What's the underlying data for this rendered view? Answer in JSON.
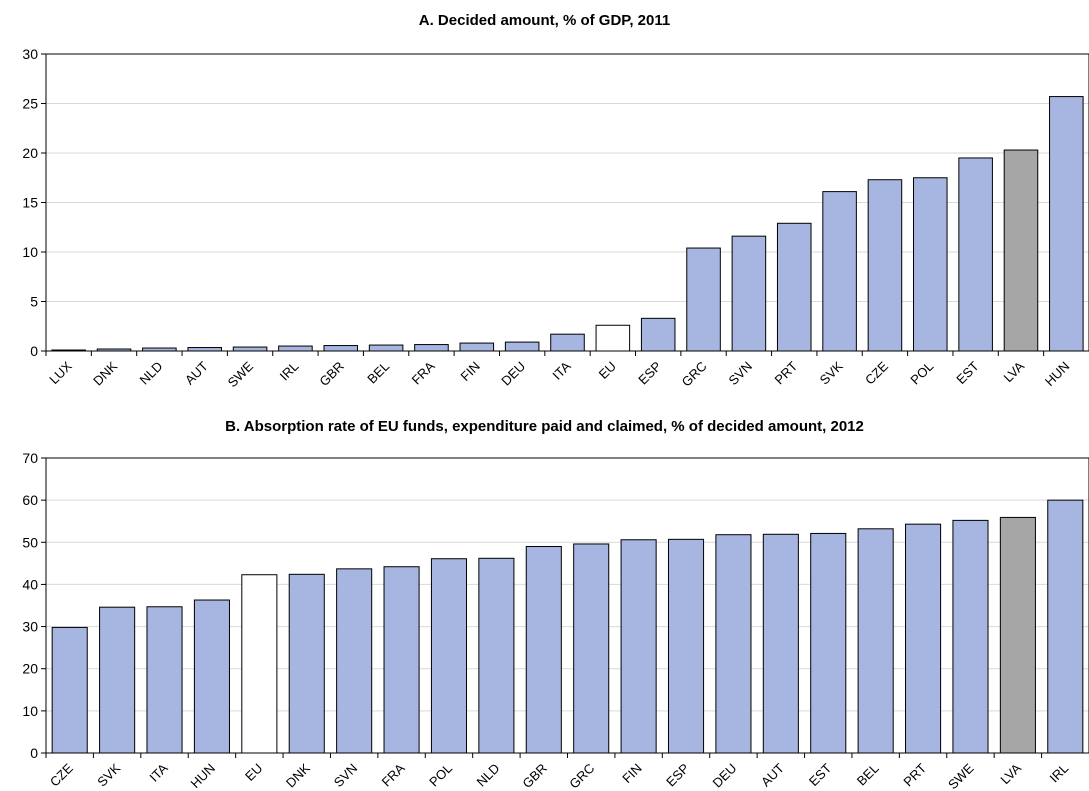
{
  "chart_data": [
    {
      "type": "bar",
      "title": "A. Decided amount, % of GDP, 2011",
      "xlabel": "",
      "ylabel": "",
      "ylim": [
        0,
        30
      ],
      "yticks": [
        0,
        5,
        10,
        15,
        20,
        25,
        30
      ],
      "grid": true,
      "categories": [
        "LUX",
        "DNK",
        "NLD",
        "AUT",
        "SWE",
        "IRL",
        "GBR",
        "BEL",
        "FRA",
        "FIN",
        "DEU",
        "ITA",
        "EU",
        "ESP",
        "GRC",
        "SVN",
        "PRT",
        "SVK",
        "CZE",
        "POL",
        "EST",
        "LVA",
        "HUN"
      ],
      "values": [
        0.1,
        0.2,
        0.3,
        0.35,
        0.4,
        0.5,
        0.55,
        0.6,
        0.65,
        0.8,
        0.9,
        1.7,
        2.6,
        3.3,
        10.4,
        11.6,
        12.9,
        16.1,
        17.3,
        17.5,
        19.5,
        20.3,
        25.7
      ],
      "highlight": {
        "EU": "#ffffff",
        "LVA": "#a6a6a6"
      },
      "bar_color": "#a6b6e1"
    },
    {
      "type": "bar",
      "title": "B. Absorption rate of EU funds, expenditure paid and claimed, % of decided amount, 2012",
      "xlabel": "",
      "ylabel": "",
      "ylim": [
        0,
        70
      ],
      "yticks": [
        0,
        10,
        20,
        30,
        40,
        50,
        60,
        70
      ],
      "grid": true,
      "categories": [
        "CZE",
        "SVK",
        "ITA",
        "HUN",
        "EU",
        "DNK",
        "SVN",
        "FRA",
        "POL",
        "NLD",
        "GBR",
        "GRC",
        "FIN",
        "ESP",
        "DEU",
        "AUT",
        "EST",
        "BEL",
        "PRT",
        "SWE",
        "LVA",
        "IRL"
      ],
      "values": [
        29.8,
        34.6,
        34.7,
        36.3,
        42.3,
        42.4,
        43.7,
        44.2,
        46.1,
        46.2,
        49.0,
        49.6,
        50.6,
        50.7,
        51.8,
        51.9,
        52.1,
        53.2,
        54.3,
        55.2,
        55.9,
        60.0
      ],
      "highlight": {
        "EU": "#ffffff",
        "LVA": "#a6a6a6"
      },
      "bar_color": "#a6b6e1"
    }
  ]
}
